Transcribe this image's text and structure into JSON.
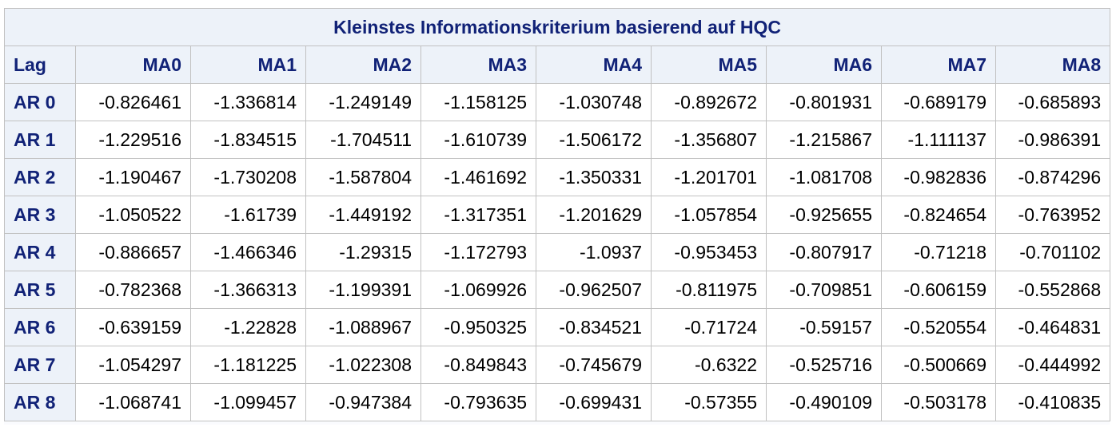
{
  "table": {
    "title": "Kleinstes Informationskriterium basierend auf HQC",
    "corner_label": "Lag",
    "columns": [
      "MA0",
      "MA1",
      "MA2",
      "MA3",
      "MA4",
      "MA5",
      "MA6",
      "MA7",
      "MA8"
    ],
    "rows": [
      {
        "label": "AR 0",
        "values": [
          "-0.826461",
          "-1.336814",
          "-1.249149",
          "-1.158125",
          "-1.030748",
          "-0.892672",
          "-0.801931",
          "-0.689179",
          "-0.685893"
        ]
      },
      {
        "label": "AR 1",
        "values": [
          "-1.229516",
          "-1.834515",
          "-1.704511",
          "-1.610739",
          "-1.506172",
          "-1.356807",
          "-1.215867",
          "-1.111137",
          "-0.986391"
        ]
      },
      {
        "label": "AR 2",
        "values": [
          "-1.190467",
          "-1.730208",
          "-1.587804",
          "-1.461692",
          "-1.350331",
          "-1.201701",
          "-1.081708",
          "-0.982836",
          "-0.874296"
        ]
      },
      {
        "label": "AR 3",
        "values": [
          "-1.050522",
          "-1.61739",
          "-1.449192",
          "-1.317351",
          "-1.201629",
          "-1.057854",
          "-0.925655",
          "-0.824654",
          "-0.763952"
        ]
      },
      {
        "label": "AR 4",
        "values": [
          "-0.886657",
          "-1.466346",
          "-1.29315",
          "-1.172793",
          "-1.0937",
          "-0.953453",
          "-0.807917",
          "-0.71218",
          "-0.701102"
        ]
      },
      {
        "label": "AR 5",
        "values": [
          "-0.782368",
          "-1.366313",
          "-1.199391",
          "-1.069926",
          "-0.962507",
          "-0.811975",
          "-0.709851",
          "-0.606159",
          "-0.552868"
        ]
      },
      {
        "label": "AR 6",
        "values": [
          "-0.639159",
          "-1.22828",
          "-1.088967",
          "-0.950325",
          "-0.834521",
          "-0.71724",
          "-0.59157",
          "-0.520554",
          "-0.464831"
        ]
      },
      {
        "label": "AR 7",
        "values": [
          "-1.054297",
          "-1.181225",
          "-1.022308",
          "-0.849843",
          "-0.745679",
          "-0.6322",
          "-0.525716",
          "-0.500669",
          "-0.444992"
        ]
      },
      {
        "label": "AR 8",
        "values": [
          "-1.068741",
          "-1.099457",
          "-0.947384",
          "-0.793635",
          "-0.699431",
          "-0.57355",
          "-0.490109",
          "-0.503178",
          "-0.410835"
        ]
      }
    ]
  },
  "colors": {
    "header_text": "#112277",
    "header_background": "#edf2f9",
    "border": "#c1c1c1",
    "cell_background": "#ffffff"
  }
}
